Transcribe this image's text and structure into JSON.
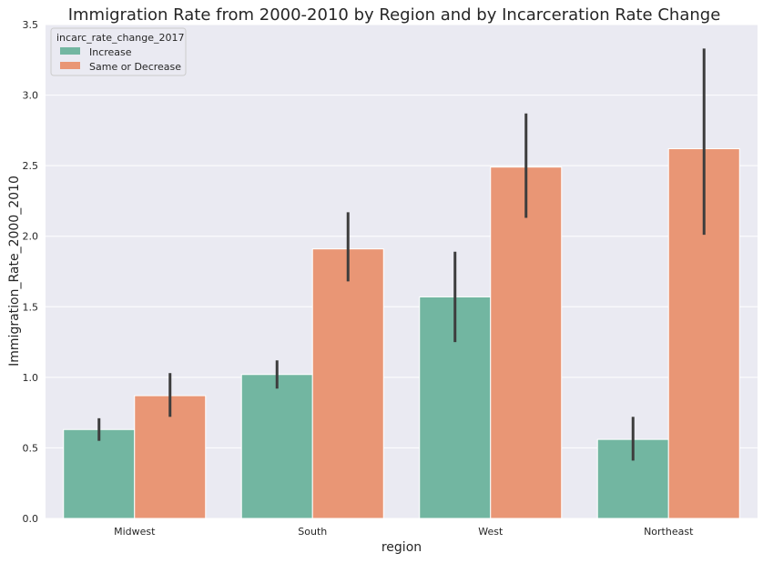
{
  "chart_data": {
    "type": "bar",
    "title": "Immigration Rate from 2000-2010 by Region and by Incarceration Rate Change",
    "xlabel": "region",
    "ylabel": "Immigration_Rate_2000_2010",
    "categories": [
      "Midwest",
      "South",
      "West",
      "Northeast"
    ],
    "ylim": [
      0,
      3.5
    ],
    "yticks": [
      "0.0",
      "0.5",
      "1.0",
      "1.5",
      "2.0",
      "2.5",
      "3.0",
      "3.5"
    ],
    "grid": true,
    "legend": {
      "title": "incarc_rate_change_2017",
      "position": "top-left"
    },
    "series": [
      {
        "name": "Increase",
        "color": "#72b6a1",
        "values": [
          0.63,
          1.02,
          1.57,
          0.56
        ],
        "ci_low": [
          0.55,
          0.92,
          1.25,
          0.41
        ],
        "ci_high": [
          0.71,
          1.12,
          1.89,
          0.72
        ]
      },
      {
        "name": "Same or Decrease",
        "color": "#e99675",
        "values": [
          0.87,
          1.91,
          2.49,
          2.62
        ],
        "ci_low": [
          0.72,
          1.68,
          2.13,
          2.01
        ],
        "ci_high": [
          1.03,
          2.17,
          2.87,
          3.33
        ]
      }
    ],
    "colors": {
      "background": "#eaeaf2",
      "grid": "#ffffff",
      "errorbar": "#3d3d3d"
    }
  }
}
